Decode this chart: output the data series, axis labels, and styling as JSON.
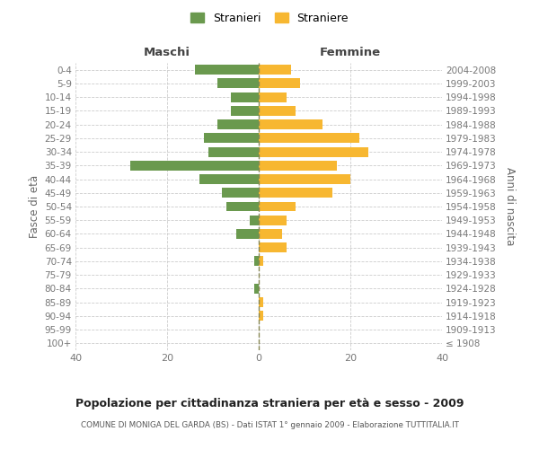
{
  "age_groups": [
    "100+",
    "95-99",
    "90-94",
    "85-89",
    "80-84",
    "75-79",
    "70-74",
    "65-69",
    "60-64",
    "55-59",
    "50-54",
    "45-49",
    "40-44",
    "35-39",
    "30-34",
    "25-29",
    "20-24",
    "15-19",
    "10-14",
    "5-9",
    "0-4"
  ],
  "birth_years": [
    "≤ 1908",
    "1909-1913",
    "1914-1918",
    "1919-1923",
    "1924-1928",
    "1929-1933",
    "1934-1938",
    "1939-1943",
    "1944-1948",
    "1949-1953",
    "1954-1958",
    "1959-1963",
    "1964-1968",
    "1969-1973",
    "1974-1978",
    "1979-1983",
    "1984-1988",
    "1989-1993",
    "1994-1998",
    "1999-2003",
    "2004-2008"
  ],
  "maschi": [
    0,
    0,
    0,
    0,
    1,
    0,
    1,
    0,
    5,
    2,
    7,
    8,
    13,
    28,
    11,
    12,
    9,
    6,
    6,
    9,
    14
  ],
  "femmine": [
    0,
    0,
    1,
    1,
    0,
    0,
    1,
    6,
    5,
    6,
    8,
    16,
    20,
    17,
    24,
    22,
    14,
    8,
    6,
    9,
    7
  ],
  "maschi_color": "#6a994e",
  "femmine_color": "#f7b731",
  "background_color": "#ffffff",
  "grid_color": "#cccccc",
  "dashed_line_color": "#888855",
  "title": "Popolazione per cittadinanza straniera per età e sesso - 2009",
  "subtitle": "COMUNE DI MONIGA DEL GARDA (BS) - Dati ISTAT 1° gennaio 2009 - Elaborazione TUTTITALIA.IT",
  "legend_stranieri": "Stranieri",
  "legend_straniere": "Straniere",
  "xlabel_left": "Maschi",
  "xlabel_right": "Femmine",
  "ylabel_left": "Fasce di età",
  "ylabel_right": "Anni di nascita",
  "xlim": 40
}
